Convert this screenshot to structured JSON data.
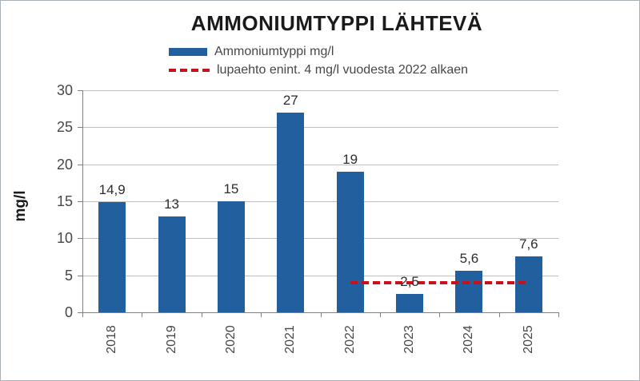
{
  "chart_data": {
    "type": "bar",
    "title": "AMMONIUMTYPPI LÄHTEVÄ",
    "ylabel": "mg/l",
    "categories": [
      "2018",
      "2019",
      "2020",
      "2021",
      "2022",
      "2023",
      "2024",
      "2025"
    ],
    "series": [
      {
        "name": "Ammoniumtyppi mg/l",
        "values": [
          14.9,
          13,
          15,
          27,
          19,
          2.5,
          5.6,
          7.6
        ],
        "value_labels": [
          "14,9",
          "13",
          "15",
          "27",
          "19",
          "2,5",
          "5,6",
          "7,6"
        ]
      }
    ],
    "reference_line": {
      "label": "lupaehto enint. 4 mg/l vuodesta 2022 alkaen",
      "value": 4,
      "from_category": "2022",
      "to_category": "2025",
      "from_category_index": 4,
      "to_category_index": 7,
      "style": "dashed"
    },
    "ylim": [
      0,
      30
    ],
    "yticks": [
      0,
      5,
      10,
      15,
      20,
      25,
      30
    ],
    "grid": "horizontal",
    "legend_position": "top-left-under-title",
    "xtick_label_rotation": 90,
    "colors": {
      "bar": "#215f9f",
      "limit_line": "#c8121b",
      "gridline": "#bfbfbf",
      "axis": "#808080"
    }
  }
}
